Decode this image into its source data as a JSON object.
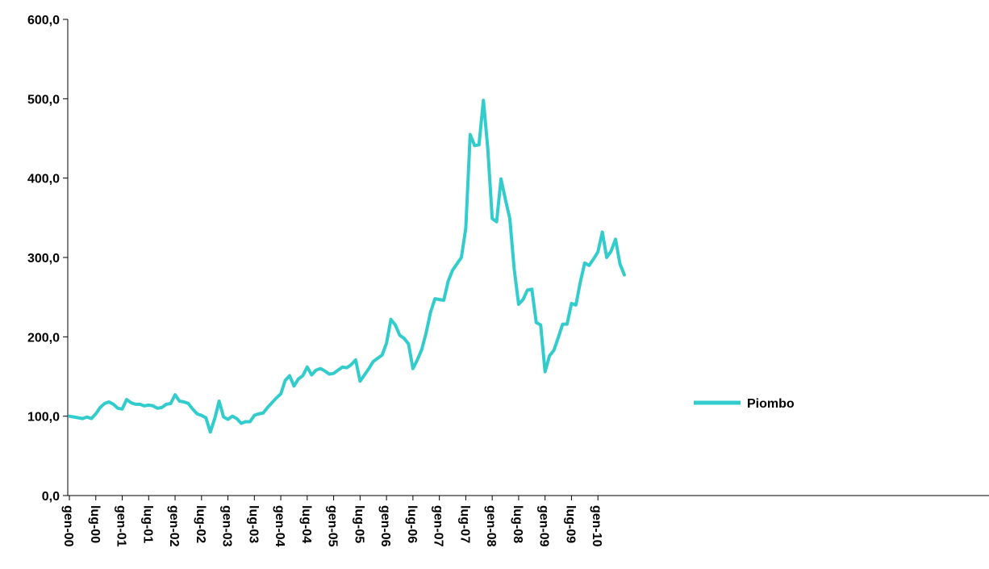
{
  "chart_data": {
    "type": "line",
    "title": "",
    "xlabel": "",
    "ylabel": "",
    "ylim": [
      0,
      600
    ],
    "y_ticks": [
      "0,0",
      "100,0",
      "200,0",
      "300,0",
      "400,0",
      "500,0",
      "600,0"
    ],
    "x_tick_labels": [
      "gen-00",
      "lug-00",
      "gen-01",
      "lug-01",
      "gen-02",
      "lug-02",
      "gen-03",
      "lug-03",
      "gen-04",
      "lug-04",
      "gen-05",
      "lug-05",
      "gen-06",
      "lug-06",
      "gen-07",
      "lug-07",
      "gen-08",
      "lug-08",
      "gen-09",
      "lug-09",
      "gen-10"
    ],
    "grid": false,
    "legend_position": "center-right",
    "series": [
      {
        "name": "Piombo",
        "color": "#33CCCC",
        "values": [
          100,
          99,
          98,
          97,
          99,
          97,
          103,
          111,
          116,
          118,
          115,
          110,
          109,
          121,
          117,
          115,
          115,
          113,
          114,
          113,
          110,
          111,
          115,
          116,
          127,
          119,
          118,
          116,
          109,
          103,
          101,
          98,
          80,
          97,
          119,
          99,
          96,
          100,
          97,
          91,
          93,
          93,
          101,
          103,
          104,
          111,
          117,
          123,
          128,
          145,
          151,
          138,
          147,
          151,
          162,
          152,
          158,
          160,
          157,
          153,
          154,
          158,
          162,
          161,
          165,
          171,
          144,
          152,
          160,
          169,
          173,
          177,
          192,
          222,
          215,
          202,
          198,
          191,
          160,
          171,
          184,
          205,
          231,
          248,
          247,
          246,
          270,
          284,
          292,
          300,
          337,
          455,
          441,
          442,
          498,
          437,
          349,
          345,
          399,
          373,
          349,
          285,
          241,
          247,
          259,
          260,
          218,
          215,
          156,
          176,
          183,
          199,
          216,
          216,
          242,
          240,
          269,
          293,
          290,
          298,
          307,
          332,
          300,
          308,
          323,
          292,
          278
        ]
      }
    ]
  }
}
